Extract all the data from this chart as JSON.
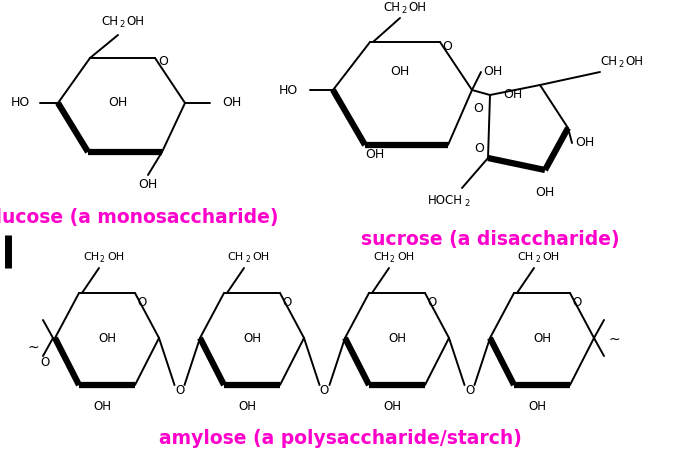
{
  "background_color": "#ffffff",
  "magenta_color": "#FF00CC",
  "black_color": "#000000",
  "label_glucose": "glucose (a monosaccharide)",
  "label_sucrose": "sucrose (a disaccharide)",
  "label_amylose": "amylose (a polysaccharide/starch)",
  "label_fontsize": 13.5,
  "fig_width": 6.81,
  "fig_height": 4.65,
  "dpi": 100
}
